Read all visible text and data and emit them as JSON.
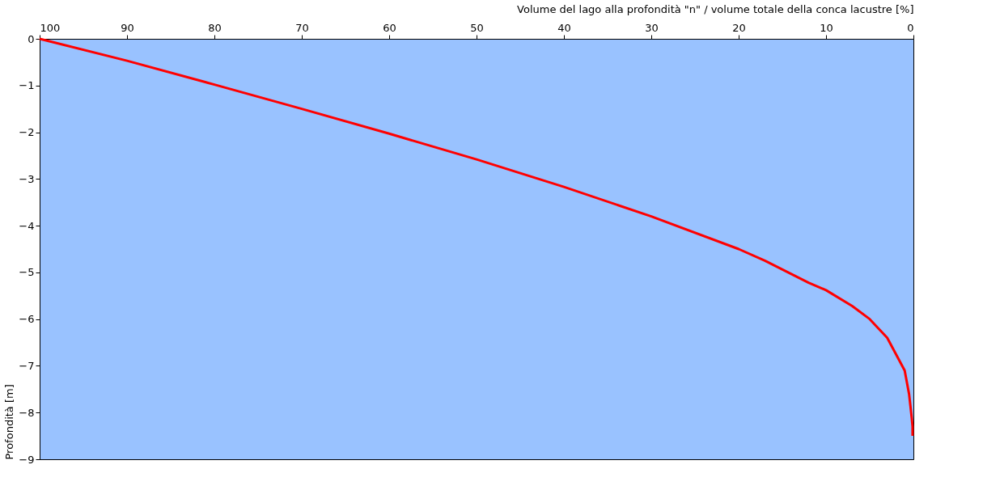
{
  "chart_data": {
    "type": "line",
    "xlabel": "Volume del lago alla profondità \"n\" / volume totale della conca lacustre [%]",
    "ylabel": "Profondità [m]",
    "x": [
      100,
      90,
      80,
      70,
      60,
      50,
      40,
      30,
      20,
      17,
      12,
      10,
      7,
      5,
      3,
      2,
      1,
      0.5,
      0.2,
      0.1,
      0.1
    ],
    "series": [
      {
        "color": "#ff0000",
        "values": [
          0,
          -0.47,
          -0.98,
          -1.5,
          -2.03,
          -2.58,
          -3.17,
          -3.8,
          -4.5,
          -4.75,
          -5.22,
          -5.38,
          -5.72,
          -6.0,
          -6.4,
          -6.75,
          -7.1,
          -7.6,
          -8.1,
          -8.3,
          -8.5
        ]
      }
    ],
    "xlim": [
      100,
      0
    ],
    "xticks": [
      100,
      90,
      80,
      70,
      60,
      50,
      40,
      30,
      20,
      10,
      0
    ],
    "ylim": [
      -9,
      0
    ],
    "yticks": [
      -9,
      -8,
      -7,
      -6,
      -5,
      -4,
      -3,
      -2,
      -1,
      0
    ],
    "grid": false,
    "marker": "none",
    "line_style": "solid"
  }
}
